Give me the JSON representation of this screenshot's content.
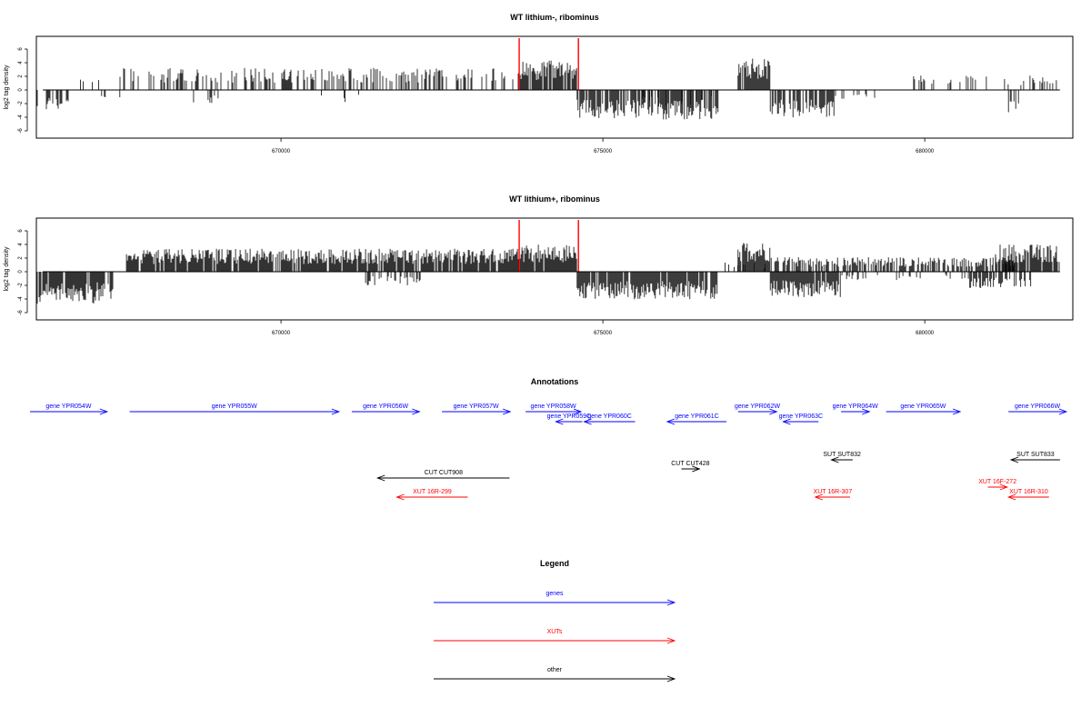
{
  "chart_data": [
    {
      "type": "bar",
      "title": "WT lithium-, ribominus",
      "ylabel": "log2 tag density",
      "xlabel": "",
      "xlim": [
        666200,
        682300
      ],
      "ylim": [
        -7,
        8
      ],
      "x_ticks": [
        670000,
        675000,
        680000
      ],
      "y_ticks": [
        -6,
        -4,
        -2,
        0,
        2,
        4,
        6
      ],
      "x_tick_labels": [
        "670000",
        "675000",
        "680000"
      ],
      "y_tick_labels": [
        "-6",
        "-4",
        "-2",
        "0",
        "2",
        "4",
        "6"
      ],
      "grid": false,
      "colors": {
        "bars": "#000000",
        "markers": "#ff0000",
        "axis": "#000000"
      },
      "markers": [
        673700,
        674620
      ],
      "segments": [
        {
          "from": 666200,
          "to": 666700,
          "sign": -1,
          "mean": 2.2,
          "density": 0.5,
          "color": "#000000"
        },
        {
          "from": 666700,
          "to": 667200,
          "sign": 1,
          "mean": 1.2,
          "density": 0.15,
          "color": "#000000"
        },
        {
          "from": 667200,
          "to": 667500,
          "sign": -1,
          "mean": 1.0,
          "density": 0.15,
          "color": "#000000"
        },
        {
          "from": 667500,
          "to": 673700,
          "sign": 1,
          "mean": 2.4,
          "density": 0.35,
          "color": "#000000"
        },
        {
          "from": 668600,
          "to": 669200,
          "sign": -1,
          "mean": 1.5,
          "density": 0.1,
          "color": "#000000"
        },
        {
          "from": 670500,
          "to": 671500,
          "sign": -1,
          "mean": 1.5,
          "density": 0.1,
          "color": "#000000"
        },
        {
          "from": 673700,
          "to": 674600,
          "sign": 1,
          "mean": 3.2,
          "density": 0.9,
          "color": "#000000"
        },
        {
          "from": 674600,
          "to": 676800,
          "sign": -1,
          "mean": 3.2,
          "density": 0.75,
          "color": "#000000"
        },
        {
          "from": 675600,
          "to": 676800,
          "sign": -1,
          "mean": 2.0,
          "density": 0.15,
          "color": "#000000"
        },
        {
          "from": 677100,
          "to": 677600,
          "sign": 1,
          "mean": 3.5,
          "density": 0.9,
          "color": "#000000"
        },
        {
          "from": 677600,
          "to": 678600,
          "sign": -1,
          "mean": 3.0,
          "density": 0.75,
          "color": "#000000"
        },
        {
          "from": 678600,
          "to": 679500,
          "sign": -1,
          "mean": 1.0,
          "density": 0.1,
          "color": "#000000"
        },
        {
          "from": 679700,
          "to": 682100,
          "sign": 1,
          "mean": 1.6,
          "density": 0.2,
          "color": "#000000"
        },
        {
          "from": 681300,
          "to": 681500,
          "sign": -1,
          "mean": 2.5,
          "density": 0.2,
          "color": "#000000"
        }
      ]
    },
    {
      "type": "bar",
      "title": "WT lithium+, ribominus",
      "ylabel": "log2 tag density",
      "xlabel": "",
      "xlim": [
        666200,
        682300
      ],
      "ylim": [
        -7,
        8
      ],
      "x_ticks": [
        670000,
        675000,
        680000
      ],
      "y_ticks": [
        -6,
        -4,
        -2,
        0,
        2,
        4,
        6
      ],
      "x_tick_labels": [
        "670000",
        "675000",
        "680000"
      ],
      "y_tick_labels": [
        "-6",
        "-4",
        "-2",
        "0",
        "2",
        "4",
        "6"
      ],
      "grid": false,
      "colors": {
        "bars": "#000000",
        "markers": "#ff0000",
        "axis": "#000000"
      },
      "markers": [
        673700,
        674620
      ],
      "segments": [
        {
          "from": 666200,
          "to": 667400,
          "sign": -1,
          "mean": 3.5,
          "density": 0.9,
          "color": "#000000"
        },
        {
          "from": 667600,
          "to": 673700,
          "sign": 1,
          "mean": 2.5,
          "density": 0.9,
          "color": "#000000"
        },
        {
          "from": 671300,
          "to": 672200,
          "sign": -1,
          "mean": 1.5,
          "density": 0.4,
          "color": "#000000"
        },
        {
          "from": 673700,
          "to": 674600,
          "sign": 1,
          "mean": 3.0,
          "density": 0.95,
          "color": "#000000"
        },
        {
          "from": 674600,
          "to": 676800,
          "sign": -1,
          "mean": 3.0,
          "density": 0.9,
          "color": "#000000"
        },
        {
          "from": 676800,
          "to": 677600,
          "sign": 1,
          "mean": 1.0,
          "density": 0.2,
          "color": "#000000"
        },
        {
          "from": 677100,
          "to": 677600,
          "sign": 1,
          "mean": 3.3,
          "density": 0.95,
          "color": "#000000"
        },
        {
          "from": 677600,
          "to": 678700,
          "sign": -1,
          "mean": 2.8,
          "density": 0.9,
          "color": "#000000"
        },
        {
          "from": 677600,
          "to": 681400,
          "sign": 1,
          "mean": 1.6,
          "density": 0.6,
          "color": "#000000"
        },
        {
          "from": 678700,
          "to": 680700,
          "sign": -1,
          "mean": 0.9,
          "density": 0.2,
          "color": "#000000"
        },
        {
          "from": 680700,
          "to": 681700,
          "sign": -1,
          "mean": 1.8,
          "density": 0.6,
          "color": "#000000"
        },
        {
          "from": 681100,
          "to": 682100,
          "sign": 1,
          "mean": 3.0,
          "density": 0.9,
          "color": "#000000"
        }
      ]
    }
  ],
  "annotations": {
    "title": "Annotations",
    "items": [
      {
        "label": "gene YPR054W",
        "from": 666100,
        "to": 667300,
        "dir": "right",
        "color": "#0000ff",
        "row": 0
      },
      {
        "label": "gene YPR055W",
        "from": 667650,
        "to": 670900,
        "dir": "right",
        "color": "#0000ff",
        "row": 0
      },
      {
        "label": "gene YPR056W",
        "from": 671100,
        "to": 672150,
        "dir": "right",
        "color": "#0000ff",
        "row": 0
      },
      {
        "label": "gene YPR057W",
        "from": 672500,
        "to": 673560,
        "dir": "right",
        "color": "#0000ff",
        "row": 0
      },
      {
        "label": "gene YPR058W",
        "from": 673800,
        "to": 674660,
        "dir": "right",
        "color": "#0000ff",
        "row": 0
      },
      {
        "label": "gene YPR059C",
        "from": 674270,
        "to": 674680,
        "dir": "left",
        "color": "#0000ff",
        "row": 1
      },
      {
        "label": "gene YPR060C",
        "from": 674710,
        "to": 675500,
        "dir": "left",
        "color": "#0000ff",
        "row": 1
      },
      {
        "label": "gene YPR061C",
        "from": 676000,
        "to": 676920,
        "dir": "left",
        "color": "#0000ff",
        "row": 1
      },
      {
        "label": "gene YPR062W",
        "from": 677100,
        "to": 677700,
        "dir": "right",
        "color": "#0000ff",
        "row": 0
      },
      {
        "label": "gene YPR063C",
        "from": 677800,
        "to": 678350,
        "dir": "left",
        "color": "#0000ff",
        "row": 1
      },
      {
        "label": "gene YPR064W",
        "from": 678700,
        "to": 679140,
        "dir": "right",
        "color": "#0000ff",
        "row": 0
      },
      {
        "label": "gene YPR065W",
        "from": 679400,
        "to": 680550,
        "dir": "right",
        "color": "#0000ff",
        "row": 0
      },
      {
        "label": "gene YPR066W",
        "from": 681300,
        "to": 682200,
        "dir": "right",
        "color": "#0000ff",
        "row": 0
      },
      {
        "label": "SUT SUT832",
        "from": 678550,
        "to": 678880,
        "dir": "left",
        "color": "#000000",
        "row": 3
      },
      {
        "label": "SUT SUT833",
        "from": 681340,
        "to": 682100,
        "dir": "left",
        "color": "#000000",
        "row": 3
      },
      {
        "label": "CUT CUT908",
        "from": 671500,
        "to": 673550,
        "dir": "left",
        "color": "#000000",
        "row": 4
      },
      {
        "label": "CUT CUT428",
        "from": 676220,
        "to": 676500,
        "dir": "right",
        "color": "#000000",
        "row": 5
      },
      {
        "label": "XUT 16R-299",
        "from": 671800,
        "to": 672900,
        "dir": "left",
        "color": "#ff0000",
        "row": 7
      },
      {
        "label": "XUT 16F-272",
        "from": 680980,
        "to": 681280,
        "dir": "right",
        "color": "#ff0000",
        "row": 6
      },
      {
        "label": "XUT 16R-307",
        "from": 678300,
        "to": 678840,
        "dir": "left",
        "color": "#ff0000",
        "row": 7
      },
      {
        "label": "XUT 16R-310",
        "from": 681300,
        "to": 681930,
        "dir": "left",
        "color": "#ff0000",
        "row": 7
      }
    ]
  },
  "legend": {
    "title": "Legend",
    "items": [
      {
        "label": "genes",
        "color": "#0000ff"
      },
      {
        "label": "XUTs",
        "color": "#ff0000"
      },
      {
        "label": "other",
        "color": "#000000"
      }
    ]
  }
}
